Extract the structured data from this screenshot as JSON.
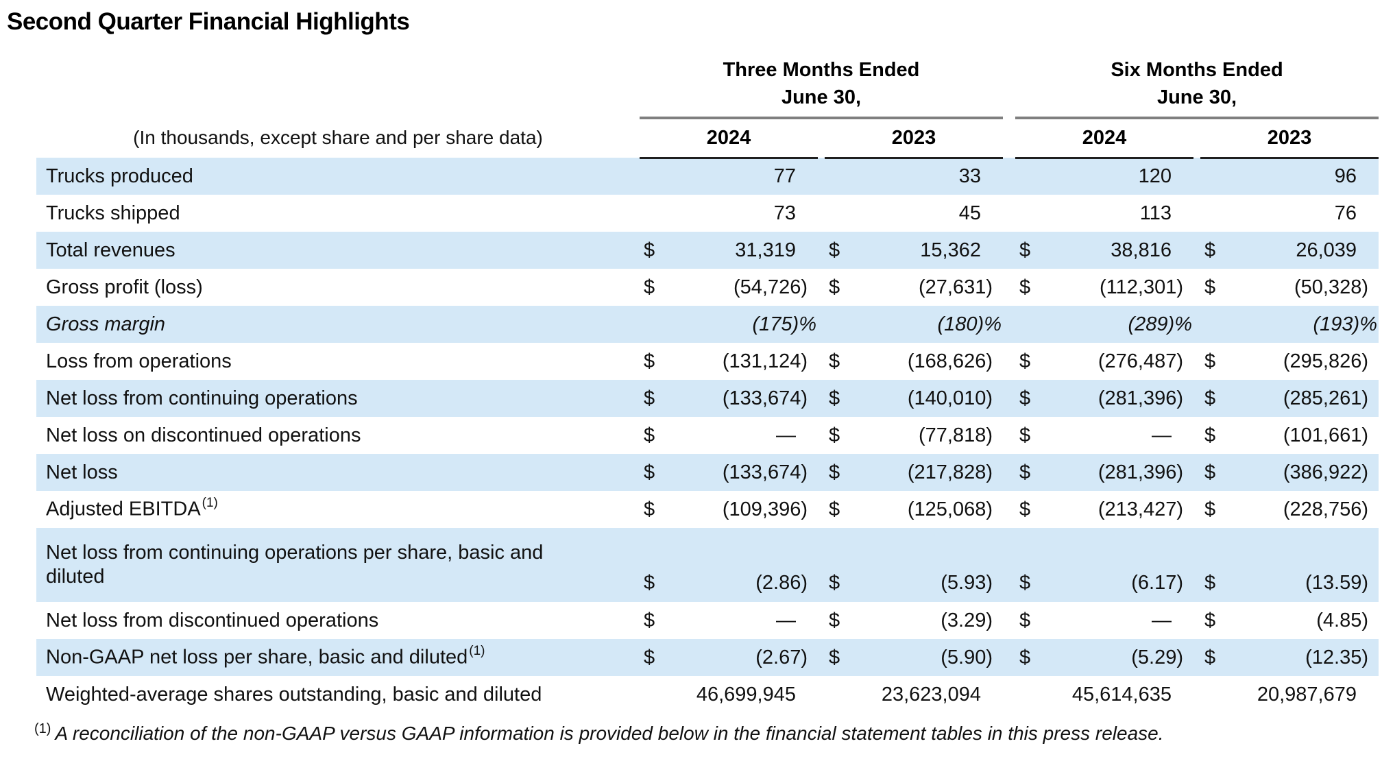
{
  "title": "Second Quarter Financial Highlights",
  "colors": {
    "row_shade": "#d4e8f7",
    "group_rule": "#7f7f7f",
    "year_rule": "#1f1f1f"
  },
  "table": {
    "units_note": "(In thousands, except share and per share data)",
    "groups": [
      {
        "line1": "Three Months Ended",
        "line2": "June 30,",
        "years": [
          "2024",
          "2023"
        ]
      },
      {
        "line1": "Six Months Ended",
        "line2": "June 30,",
        "years": [
          "2024",
          "2023"
        ]
      }
    ],
    "rows": [
      {
        "label": "Trucks produced",
        "dollar": false,
        "shaded": true,
        "values": [
          "77",
          "33",
          "120",
          "96"
        ]
      },
      {
        "label": "Trucks shipped",
        "dollar": false,
        "shaded": false,
        "values": [
          "73",
          "45",
          "113",
          "76"
        ]
      },
      {
        "label": "Total revenues",
        "dollar": true,
        "shaded": true,
        "values": [
          "31,319",
          "15,362",
          "38,816",
          "26,039"
        ]
      },
      {
        "label": "Gross profit (loss)",
        "dollar": true,
        "shaded": false,
        "values": [
          "(54,726)",
          "(27,631)",
          "(112,301)",
          "(50,328)"
        ]
      },
      {
        "label": "Gross margin",
        "dollar": false,
        "shaded": true,
        "italic": true,
        "values": [
          "(175)%",
          "(180)%",
          "(289)%",
          "(193)%"
        ]
      },
      {
        "label": "Loss from operations",
        "dollar": true,
        "shaded": false,
        "values": [
          "(131,124)",
          "(168,626)",
          "(276,487)",
          "(295,826)"
        ]
      },
      {
        "label": "Net loss from continuing operations",
        "dollar": true,
        "shaded": true,
        "values": [
          "(133,674)",
          "(140,010)",
          "(281,396)",
          "(285,261)"
        ]
      },
      {
        "label": "Net loss on discontinued operations",
        "dollar": true,
        "shaded": false,
        "values": [
          "—",
          "(77,818)",
          "—",
          "(101,661)"
        ]
      },
      {
        "label": "Net loss",
        "dollar": true,
        "shaded": true,
        "values": [
          "(133,674)",
          "(217,828)",
          "(281,396)",
          "(386,922)"
        ]
      },
      {
        "label": "Adjusted EBITDA",
        "sup": "(1)",
        "dollar": true,
        "shaded": false,
        "values": [
          "(109,396)",
          "(125,068)",
          "(213,427)",
          "(228,756)"
        ]
      },
      {
        "label": "Net loss from continuing operations per share, basic and",
        "label_line2": "diluted",
        "tall": true,
        "dollar": true,
        "shaded": true,
        "values": [
          "(2.86)",
          "(5.93)",
          "(6.17)",
          "(13.59)"
        ]
      },
      {
        "label": "Net loss from discontinued operations",
        "dollar": true,
        "shaded": false,
        "values": [
          "—",
          "(3.29)",
          "—",
          "(4.85)"
        ]
      },
      {
        "label": "Non-GAAP net loss per share, basic and diluted",
        "sup": "(1)",
        "dollar": true,
        "shaded": true,
        "values": [
          "(2.67)",
          "(5.90)",
          "(5.29)",
          "(12.35)"
        ]
      },
      {
        "label": "Weighted-average shares outstanding, basic and diluted",
        "dollar": false,
        "shaded": false,
        "values": [
          "46,699,945",
          "23,623,094",
          "45,614,635",
          "20,987,679"
        ]
      }
    ]
  },
  "footnote": {
    "marker": "(1)",
    "text": "A reconciliation of the non-GAAP versus GAAP information is provided below in the financial statement tables in this press release."
  }
}
